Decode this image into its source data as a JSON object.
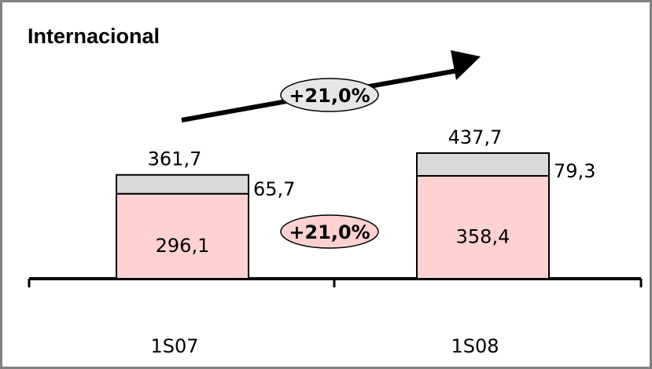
{
  "chart_data": {
    "type": "bar",
    "title": "Internacional",
    "categories": [
      "1S07",
      "1S08"
    ],
    "totals": [
      "361,7",
      "437,7"
    ],
    "series": [
      {
        "values": [
          296.1,
          358.4
        ],
        "labels": [
          "296,1",
          "358,4"
        ],
        "color": "#ffd1d1"
      },
      {
        "values": [
          65.7,
          79.3
        ],
        "labels": [
          "65,7",
          "79,3"
        ],
        "color": "#d9d9d9"
      }
    ],
    "growth_labels": [
      {
        "text": "+21,0%",
        "fill": "#e6e6e6"
      },
      {
        "text": "+21,0%",
        "fill": "#ffd1d1"
      }
    ],
    "ylim": [
      0,
      437.7
    ],
    "grid": false,
    "legend": "none"
  }
}
